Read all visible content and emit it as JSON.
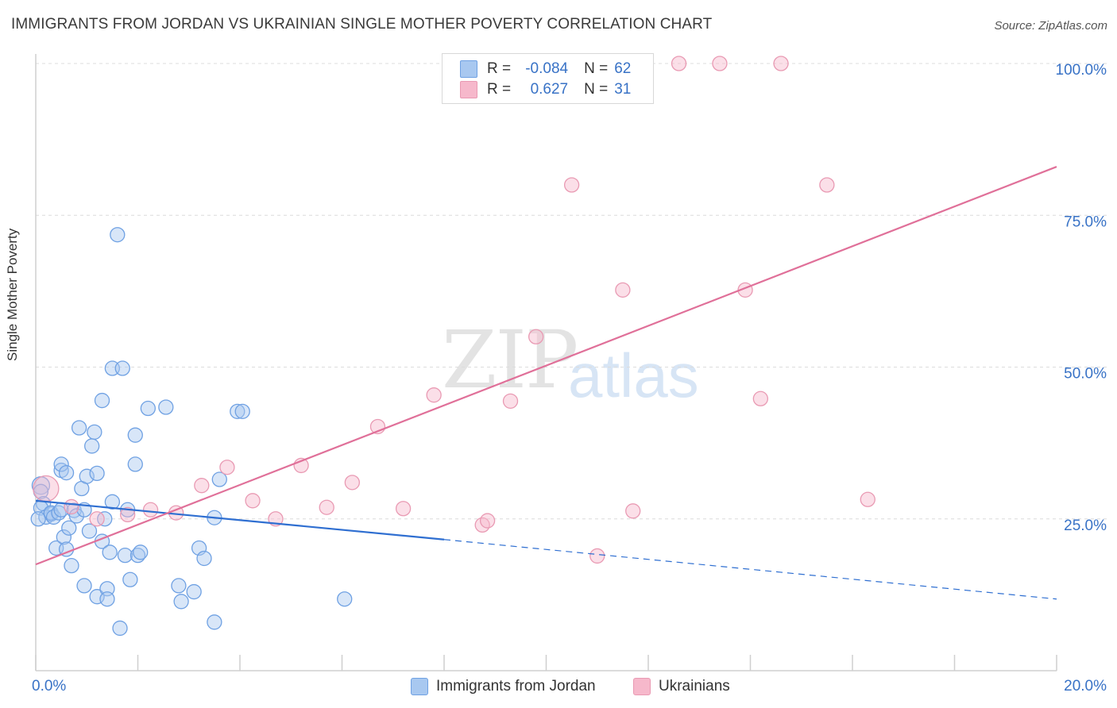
{
  "header": {
    "title": "IMMIGRANTS FROM JORDAN VS UKRAINIAN SINGLE MOTHER POVERTY CORRELATION CHART",
    "source": "Source: ZipAtlas.com"
  },
  "watermark": {
    "zip": "ZIP",
    "atlas": "atlas"
  },
  "legend": {
    "r_label": "R =",
    "n_label": "N =",
    "rows": [
      {
        "r": "-0.084",
        "n": "62",
        "color": "#a8c8f0"
      },
      {
        "r": "0.627",
        "n": "31",
        "color": "#f6b8cb"
      }
    ]
  },
  "bottom_legend": [
    {
      "label": "Immigrants from Jordan",
      "color": "#a8c8f0"
    },
    {
      "label": "Ukrainians",
      "color": "#f6b8cb"
    }
  ],
  "chart_data": {
    "type": "scatter",
    "title": "IMMIGRANTS FROM JORDAN VS UKRAINIAN SINGLE MOTHER POVERTY CORRELATION CHART",
    "xlabel": "",
    "ylabel": "Single Mother Poverty",
    "xlim": [
      0,
      20
    ],
    "ylim": [
      0,
      100
    ],
    "x_ticks": [
      0,
      2,
      4,
      6,
      8,
      10,
      12,
      14,
      16,
      18,
      20
    ],
    "x_tick_labels": [
      {
        "value": 0,
        "label": "0.0%"
      },
      {
        "value": 20,
        "label": "20.0%"
      }
    ],
    "y_ticks": [
      {
        "value": 25,
        "label": "25.0%"
      },
      {
        "value": 50,
        "label": "50.0%"
      },
      {
        "value": 75,
        "label": "75.0%"
      },
      {
        "value": 100,
        "label": "100.0%"
      }
    ],
    "grid": "horizontal dashed",
    "legend_position": "top-center",
    "series": [
      {
        "name": "Immigrants from Jordan",
        "color": "#6fa1e3",
        "fill": "#a8c8f0",
        "r": -0.084,
        "n": 62,
        "trend": {
          "x1": 0,
          "y1": 28.0,
          "x2": 8.0,
          "y2": 21.6,
          "dash_to_x": 20,
          "dash_to_y": 11.8,
          "color": "#2f6fd1"
        },
        "points": [
          [
            0.1,
            30.5
          ],
          [
            0.1,
            29.5
          ],
          [
            0.15,
            27.5
          ],
          [
            0.1,
            26.8
          ],
          [
            0.2,
            25.3
          ],
          [
            0.3,
            25.8
          ],
          [
            0.3,
            26.0
          ],
          [
            0.35,
            25.3
          ],
          [
            0.4,
            20.2
          ],
          [
            0.45,
            26.0
          ],
          [
            0.5,
            26.5
          ],
          [
            0.5,
            33.0
          ],
          [
            0.5,
            34.0
          ],
          [
            0.55,
            22.0
          ],
          [
            0.6,
            20.0
          ],
          [
            0.6,
            32.6
          ],
          [
            0.65,
            23.5
          ],
          [
            0.7,
            17.3
          ],
          [
            0.75,
            26.4
          ],
          [
            0.8,
            25.5
          ],
          [
            0.85,
            40.0
          ],
          [
            0.9,
            30.0
          ],
          [
            0.95,
            26.5
          ],
          [
            0.95,
            14.0
          ],
          [
            1.0,
            32.0
          ],
          [
            1.05,
            23.0
          ],
          [
            1.1,
            37.0
          ],
          [
            1.15,
            39.3
          ],
          [
            1.2,
            32.5
          ],
          [
            1.2,
            12.2
          ],
          [
            1.3,
            21.3
          ],
          [
            1.3,
            44.5
          ],
          [
            1.35,
            25.0
          ],
          [
            1.4,
            13.5
          ],
          [
            1.4,
            11.8
          ],
          [
            1.45,
            19.5
          ],
          [
            1.5,
            27.8
          ],
          [
            1.5,
            49.8
          ],
          [
            1.6,
            71.8
          ],
          [
            1.65,
            7.0
          ],
          [
            1.7,
            49.8
          ],
          [
            1.75,
            19.0
          ],
          [
            1.8,
            26.5
          ],
          [
            1.85,
            15.0
          ],
          [
            1.95,
            38.8
          ],
          [
            1.95,
            34.0
          ],
          [
            2.0,
            19.0
          ],
          [
            2.05,
            19.5
          ],
          [
            2.2,
            43.2
          ],
          [
            2.55,
            43.4
          ],
          [
            2.8,
            14.0
          ],
          [
            2.85,
            11.4
          ],
          [
            3.1,
            13.0
          ],
          [
            3.2,
            20.2
          ],
          [
            3.3,
            18.5
          ],
          [
            3.5,
            25.2
          ],
          [
            3.5,
            8.0
          ],
          [
            3.6,
            31.5
          ],
          [
            3.95,
            42.7
          ],
          [
            4.05,
            42.7
          ],
          [
            6.05,
            11.8
          ],
          [
            0.05,
            25.0
          ]
        ]
      },
      {
        "name": "Ukrainians",
        "color": "#e99ab3",
        "fill": "#f6b8cb",
        "r": 0.627,
        "n": 31,
        "trend": {
          "x1": 0,
          "y1": 17.5,
          "x2": 20,
          "y2": 83.0,
          "color": "#e07099"
        },
        "points": [
          [
            0.2,
            30.0
          ],
          [
            0.7,
            27.0
          ],
          [
            1.2,
            25.0
          ],
          [
            1.8,
            25.7
          ],
          [
            2.25,
            26.5
          ],
          [
            2.75,
            26.0
          ],
          [
            3.25,
            30.5
          ],
          [
            3.75,
            33.5
          ],
          [
            4.25,
            28.0
          ],
          [
            4.7,
            25.0
          ],
          [
            5.2,
            33.8
          ],
          [
            5.7,
            26.9
          ],
          [
            6.2,
            31.0
          ],
          [
            6.7,
            40.2
          ],
          [
            7.2,
            26.7
          ],
          [
            7.8,
            45.4
          ],
          [
            8.75,
            24.0
          ],
          [
            8.85,
            24.7
          ],
          [
            9.3,
            44.4
          ],
          [
            9.8,
            55.0
          ],
          [
            10.5,
            80.0
          ],
          [
            11.0,
            18.9
          ],
          [
            11.5,
            62.7
          ],
          [
            11.7,
            26.3
          ],
          [
            12.6,
            100
          ],
          [
            13.4,
            100
          ],
          [
            13.9,
            62.7
          ],
          [
            14.2,
            44.8
          ],
          [
            14.6,
            100
          ],
          [
            15.5,
            80.0
          ],
          [
            16.3,
            28.2
          ]
        ]
      }
    ]
  }
}
